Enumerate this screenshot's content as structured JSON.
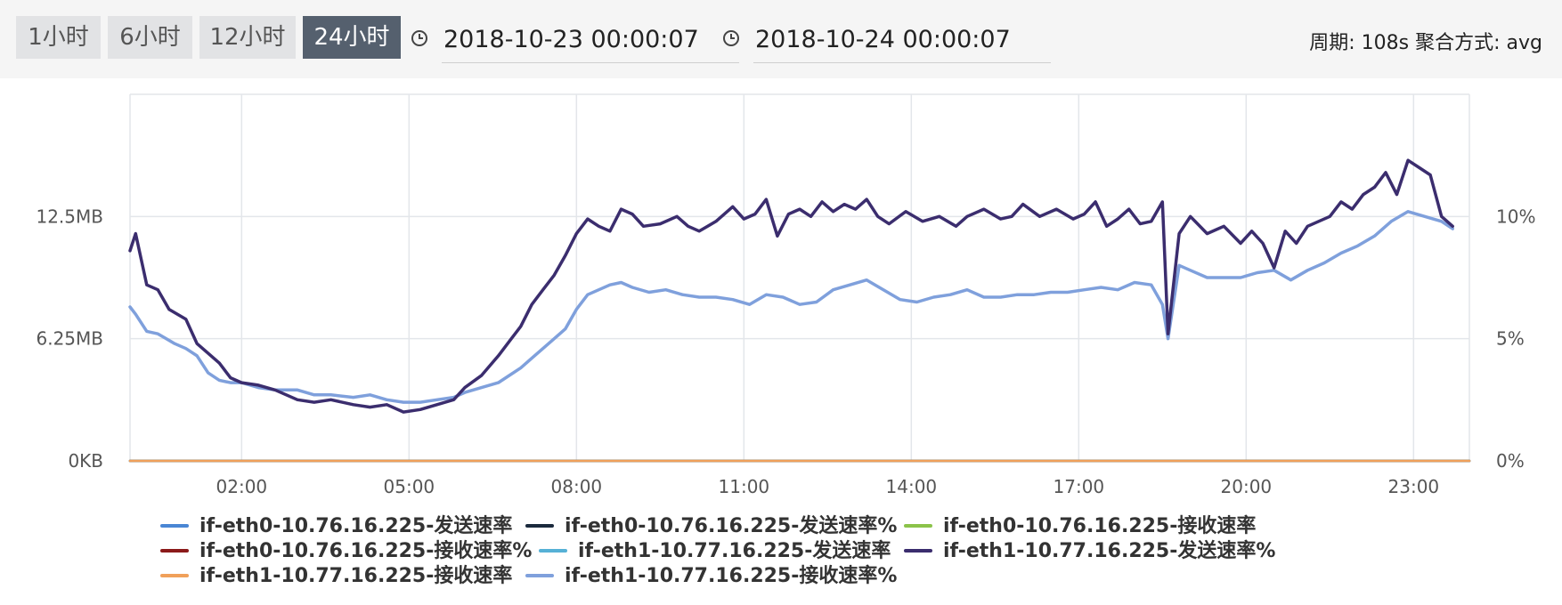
{
  "toolbar": {
    "ranges": [
      {
        "label": "1小时",
        "active": false
      },
      {
        "label": "6小时",
        "active": false
      },
      {
        "label": "12小时",
        "active": false
      },
      {
        "label": "24小时",
        "active": true
      }
    ],
    "start_time": "2018-10-23 00:00:07",
    "end_time": "2018-10-24 00:00:07",
    "period_text": "周期: 108s 聚合方式: avg",
    "icon": "clock-icon"
  },
  "chart_data": {
    "type": "line",
    "x_unit": "hours",
    "xlim": [
      0.0,
      24.0
    ],
    "x_ticks": [
      "02:00",
      "05:00",
      "08:00",
      "11:00",
      "14:00",
      "17:00",
      "20:00",
      "23:00"
    ],
    "y_left_ticks": [
      "0KB",
      "6.25MB",
      "12.5MB"
    ],
    "y_right_ticks": [
      "0%",
      "5%",
      "10%"
    ],
    "ylim_left_mb": [
      0,
      18.75
    ],
    "ylim_right_pct": [
      0,
      15
    ],
    "grid": true,
    "legend_position": "bottom",
    "series": [
      {
        "name": "if-eth0-10.76.16.225-发送速率",
        "color": "#4a86d4",
        "axis": "left",
        "x": [
          0.0,
          24.0
        ],
        "y": [
          0,
          0
        ]
      },
      {
        "name": "if-eth0-10.76.16.225-发送速率%",
        "color": "#1b2a3d",
        "axis": "right",
        "x": [
          0.0,
          24.0
        ],
        "y": [
          0,
          0
        ]
      },
      {
        "name": "if-eth0-10.76.16.225-接收速率",
        "color": "#8bc34a",
        "axis": "left",
        "x": [
          0.0,
          24.0
        ],
        "y": [
          0,
          0
        ]
      },
      {
        "name": "if-eth0-10.76.16.225-接收速率%",
        "color": "#8b1a1a",
        "axis": "right",
        "x": [
          0.0,
          24.0
        ],
        "y": [
          0,
          0
        ]
      },
      {
        "name": "if-eth1-10.77.16.225-发送速率",
        "color": "#56b1d6",
        "axis": "left",
        "x": [
          0.0,
          24.0
        ],
        "y": [
          0,
          0
        ]
      },
      {
        "name": "if-eth1-10.77.16.225-发送速率%",
        "color": "#3b2d6e",
        "axis": "right",
        "x": [
          0.0,
          0.1,
          0.3,
          0.5,
          0.7,
          1.0,
          1.2,
          1.4,
          1.6,
          1.8,
          2.0,
          2.3,
          2.6,
          3.0,
          3.3,
          3.6,
          4.0,
          4.3,
          4.6,
          4.9,
          5.2,
          5.5,
          5.8,
          6.0,
          6.3,
          6.6,
          6.8,
          7.0,
          7.2,
          7.4,
          7.6,
          7.8,
          8.0,
          8.2,
          8.4,
          8.6,
          8.8,
          9.0,
          9.2,
          9.5,
          9.8,
          10.0,
          10.2,
          10.5,
          10.8,
          11.0,
          11.2,
          11.4,
          11.6,
          11.8,
          12.0,
          12.2,
          12.4,
          12.6,
          12.8,
          13.0,
          13.2,
          13.4,
          13.6,
          13.9,
          14.2,
          14.5,
          14.8,
          15.0,
          15.3,
          15.6,
          15.8,
          16.0,
          16.3,
          16.6,
          16.9,
          17.1,
          17.3,
          17.5,
          17.7,
          17.9,
          18.1,
          18.3,
          18.5,
          18.6,
          18.8,
          19.0,
          19.3,
          19.6,
          19.9,
          20.1,
          20.3,
          20.5,
          20.7,
          20.9,
          21.1,
          21.3,
          21.5,
          21.7,
          21.9,
          22.1,
          22.3,
          22.5,
          22.7,
          22.9,
          23.1,
          23.3,
          23.5,
          23.7
        ],
        "y": [
          8.6,
          9.3,
          7.2,
          7.0,
          6.2,
          5.8,
          4.8,
          4.4,
          4.0,
          3.4,
          3.2,
          3.1,
          2.9,
          2.5,
          2.4,
          2.5,
          2.3,
          2.2,
          2.3,
          2.0,
          2.1,
          2.3,
          2.5,
          3.0,
          3.5,
          4.3,
          4.9,
          5.5,
          6.4,
          7.0,
          7.6,
          8.4,
          9.3,
          9.9,
          9.6,
          9.4,
          10.3,
          10.1,
          9.6,
          9.7,
          10.0,
          9.6,
          9.4,
          9.8,
          10.4,
          9.9,
          10.1,
          10.7,
          9.2,
          10.1,
          10.3,
          10.0,
          10.6,
          10.2,
          10.5,
          10.3,
          10.7,
          10.0,
          9.7,
          10.2,
          9.8,
          10.0,
          9.6,
          10.0,
          10.3,
          9.9,
          10.0,
          10.5,
          10.0,
          10.3,
          9.9,
          10.1,
          10.6,
          9.6,
          9.9,
          10.3,
          9.7,
          9.8,
          10.6,
          5.2,
          9.3,
          10.0,
          9.3,
          9.6,
          8.9,
          9.4,
          8.9,
          7.9,
          9.4,
          8.9,
          9.6,
          9.8,
          10.0,
          10.6,
          10.3,
          10.9,
          11.2,
          11.8,
          10.9,
          12.3,
          12.0,
          11.7,
          10.0,
          9.6
        ]
      },
      {
        "name": "if-eth1-10.77.16.225-接收速率",
        "color": "#f0a05a",
        "axis": "left",
        "x": [
          0.0,
          24.0
        ],
        "y": [
          0,
          0
        ]
      },
      {
        "name": "if-eth1-10.77.16.225-接收速率%",
        "color": "#7fa0dc",
        "axis": "right",
        "x": [
          0.0,
          0.1,
          0.3,
          0.5,
          0.8,
          1.0,
          1.2,
          1.4,
          1.6,
          1.8,
          2.0,
          2.3,
          2.6,
          3.0,
          3.3,
          3.6,
          4.0,
          4.3,
          4.6,
          4.9,
          5.2,
          5.5,
          5.8,
          6.0,
          6.3,
          6.6,
          6.8,
          7.0,
          7.2,
          7.4,
          7.6,
          7.8,
          8.0,
          8.2,
          8.4,
          8.6,
          8.8,
          9.0,
          9.3,
          9.6,
          9.9,
          10.2,
          10.5,
          10.8,
          11.1,
          11.4,
          11.7,
          12.0,
          12.3,
          12.6,
          12.9,
          13.2,
          13.5,
          13.8,
          14.1,
          14.4,
          14.7,
          15.0,
          15.3,
          15.6,
          15.9,
          16.2,
          16.5,
          16.8,
          17.1,
          17.4,
          17.7,
          18.0,
          18.3,
          18.5,
          18.6,
          18.8,
          19.0,
          19.3,
          19.6,
          19.9,
          20.2,
          20.5,
          20.8,
          21.1,
          21.4,
          21.7,
          22.0,
          22.3,
          22.6,
          22.9,
          23.2,
          23.5,
          23.7
        ],
        "y": [
          6.3,
          6.0,
          5.3,
          5.2,
          4.8,
          4.6,
          4.3,
          3.6,
          3.3,
          3.2,
          3.2,
          3.0,
          2.9,
          2.9,
          2.7,
          2.7,
          2.6,
          2.7,
          2.5,
          2.4,
          2.4,
          2.5,
          2.6,
          2.8,
          3.0,
          3.2,
          3.5,
          3.8,
          4.2,
          4.6,
          5.0,
          5.4,
          6.2,
          6.8,
          7.0,
          7.2,
          7.3,
          7.1,
          6.9,
          7.0,
          6.8,
          6.7,
          6.7,
          6.6,
          6.4,
          6.8,
          6.7,
          6.4,
          6.5,
          7.0,
          7.2,
          7.4,
          7.0,
          6.6,
          6.5,
          6.7,
          6.8,
          7.0,
          6.7,
          6.7,
          6.8,
          6.8,
          6.9,
          6.9,
          7.0,
          7.1,
          7.0,
          7.3,
          7.2,
          6.4,
          5.0,
          8.0,
          7.8,
          7.5,
          7.5,
          7.5,
          7.7,
          7.8,
          7.4,
          7.8,
          8.1,
          8.5,
          8.8,
          9.2,
          9.8,
          10.2,
          10.0,
          9.8,
          9.5
        ]
      }
    ]
  }
}
